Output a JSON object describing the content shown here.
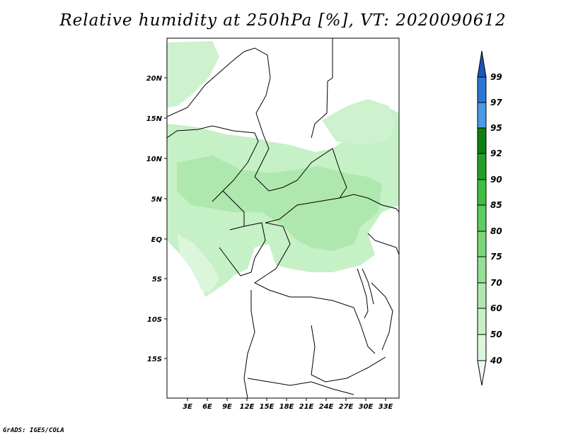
{
  "title": "Relative humidity at 250hPa [%], VT: 2020090612",
  "credit": "GrADS: IGES/COLA",
  "map": {
    "lat_labels": [
      "20N",
      "15N",
      "10N",
      "5N",
      "EQ",
      "5S",
      "10S",
      "15S"
    ],
    "lon_labels": [
      "3E",
      "6E",
      "9E",
      "12E",
      "15E",
      "18E",
      "21E",
      "24E",
      "27E",
      "30E",
      "33E"
    ]
  },
  "colorbar": {
    "levels": [
      "40",
      "50",
      "60",
      "70",
      "75",
      "80",
      "85",
      "90",
      "92",
      "95",
      "97",
      "99"
    ],
    "colors": [
      "#f0fbf0",
      "#dcf6dc",
      "#c6f0c6",
      "#aee8ae",
      "#94e094",
      "#79d779",
      "#5ccc5c",
      "#3fbf3f",
      "#249f24",
      "#117e11",
      "#4a9ae6",
      "#2a76d4",
      "#1a55b8"
    ]
  }
}
